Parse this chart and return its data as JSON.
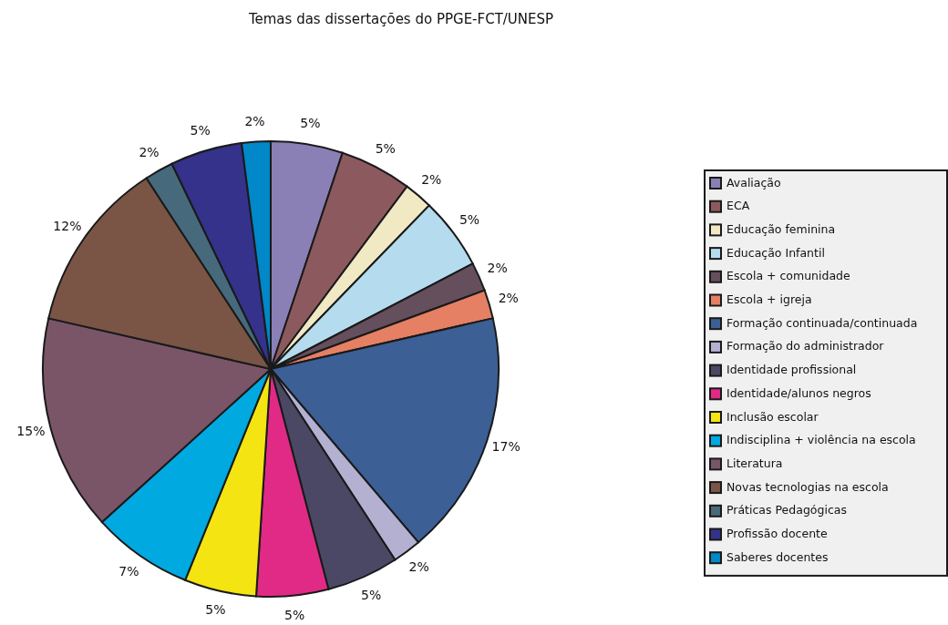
{
  "chart_data": {
    "type": "pie",
    "title": "Temas das dissertações do PPGE-FCT/UNESP",
    "categories": [
      "Avaliação",
      "ECA",
      "Educação feminina",
      "Educação Infantil",
      "Escola + comunidade",
      "Escola + igreja",
      "Formação continuada/continuada",
      "Formação do administrador",
      "Identidade profissional",
      "Identidade/alunos negros",
      "Inclusão escolar",
      "Indisciplina + violência na escola",
      "Literatura",
      "Novas tecnologias na escola",
      "Práticas Pedagógicas",
      "Profissão docente",
      "Saberes docentes"
    ],
    "values": [
      5,
      5,
      2,
      5,
      2,
      2,
      17,
      2,
      5,
      5,
      5,
      7,
      15,
      12,
      2,
      5,
      2
    ],
    "value_labels": [
      "5%",
      "5%",
      "2%",
      "5%",
      "2%",
      "2%",
      "17%",
      "2%",
      "5%",
      "5%",
      "5%",
      "7%",
      "15%",
      "12%",
      "2%",
      "5%",
      "2%"
    ],
    "colors": [
      "#8a80b6",
      "#8c5a5e",
      "#f0e9c4",
      "#b5dbef",
      "#654f5c",
      "#e58064",
      "#3c5f95",
      "#b3b0d2",
      "#4b4865",
      "#e02a86",
      "#f4e412",
      "#00a9e0",
      "#7a5568",
      "#7a5546",
      "#466a7c",
      "#34328a",
      "#0088c8"
    ],
    "legend": "right"
  }
}
